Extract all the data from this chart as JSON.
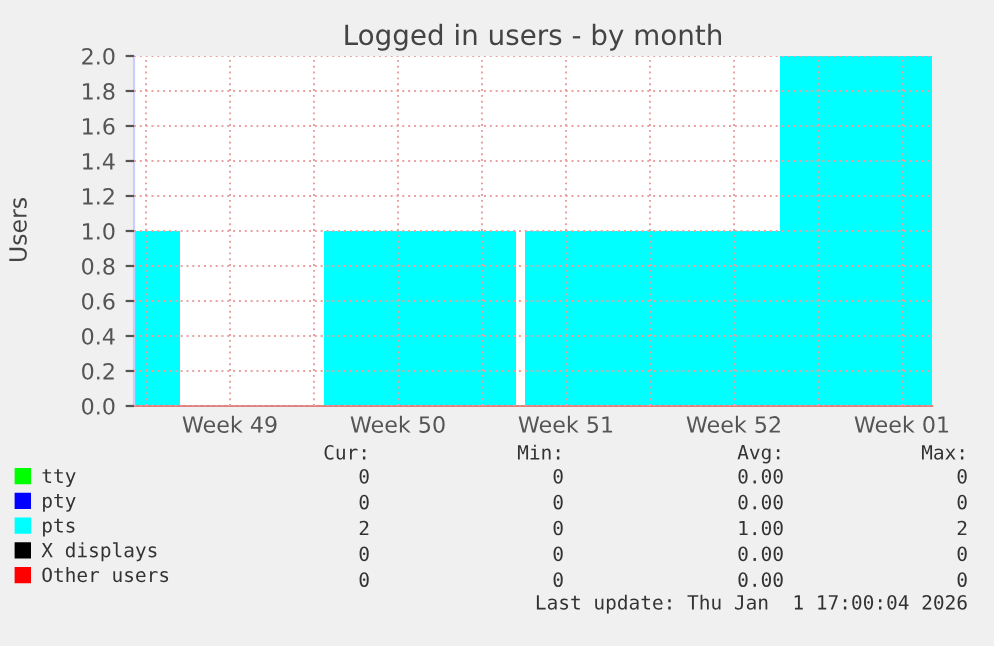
{
  "chart_data": {
    "type": "area",
    "title": "Logged in users - by month",
    "ylabel": "Users",
    "x": [
      "2025-11-30T12:00",
      "2025-12-02T10:00",
      "2025-12-08T10:00",
      "2025-12-16T10:00",
      "2025-12-16T19:00",
      "2025-12-27T10:00",
      "2026-01-02T18:00"
    ],
    "series": [
      {
        "name": "tty",
        "color": "#00ff00",
        "values": [
          null,
          null,
          null,
          null,
          null,
          null,
          null
        ]
      },
      {
        "name": "pty",
        "color": "#0000ff",
        "values": [
          null,
          null,
          null,
          null,
          null,
          null,
          null
        ]
      },
      {
        "name": "pts",
        "color": "#00ffff",
        "values": [
          1,
          0,
          1,
          0,
          1,
          2,
          2
        ]
      },
      {
        "name": "X displays",
        "color": "#000000",
        "values": [
          null,
          null,
          null,
          null,
          null,
          null,
          null
        ]
      },
      {
        "name": "Other users",
        "color": "#ff0000",
        "values": [
          null,
          null,
          null,
          null,
          null,
          null,
          null
        ]
      }
    ],
    "xlim": [
      "2025-11-30T12:00",
      "2026-01-02T18:00"
    ],
    "xticks": [
      {
        "value": "2025-12-01",
        "label": null
      },
      {
        "value": "2025-12-04T12:00",
        "label": "Week 49"
      },
      {
        "value": "2025-12-08",
        "label": null
      },
      {
        "value": "2025-12-11T12:00",
        "label": "Week 50"
      },
      {
        "value": "2025-12-15",
        "label": null
      },
      {
        "value": "2025-12-18T12:00",
        "label": "Week 51"
      },
      {
        "value": "2025-12-22",
        "label": null
      },
      {
        "value": "2025-12-25T12:00",
        "label": "Week 52"
      },
      {
        "value": "2025-12-29",
        "label": null
      },
      {
        "value": "2026-01-01T12:00",
        "label": "Week 01"
      }
    ],
    "ylim": [
      0,
      2
    ],
    "yticks": [
      {
        "value": 0,
        "label": "0.0"
      },
      {
        "value": 0.2,
        "label": "0.2"
      },
      {
        "value": 0.4,
        "label": "0.4"
      },
      {
        "value": 0.6,
        "label": "0.6"
      },
      {
        "value": 0.8,
        "label": "0.8"
      },
      {
        "value": 1,
        "label": "1.0"
      },
      {
        "value": 1.2,
        "label": "1.2"
      },
      {
        "value": 1.4,
        "label": "1.4"
      },
      {
        "value": 1.6,
        "label": "1.6"
      },
      {
        "value": 1.8,
        "label": "1.8"
      },
      {
        "value": 2,
        "label": "2.0"
      }
    ],
    "grid": true,
    "legend": "bottom left",
    "annotations": [
      "Cur:",
      "Min:",
      "Avg:",
      "Max:",
      "0",
      "0",
      "0.00",
      "0",
      "0",
      "0",
      "0.00",
      "0",
      "2",
      "0",
      "1.00",
      "2",
      "0",
      "0",
      "0.00",
      "0",
      "0",
      "0",
      "0.00",
      "0",
      "Last update: Thu Jan  1 17:00:04 2026"
    ]
  }
}
